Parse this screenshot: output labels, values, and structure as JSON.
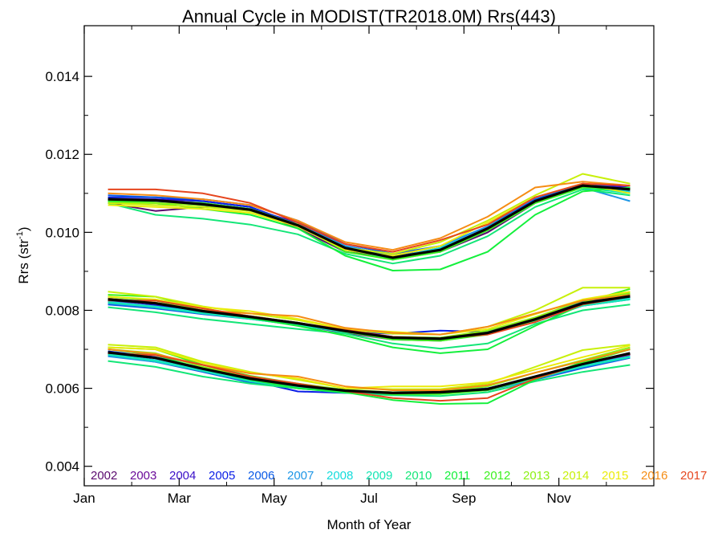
{
  "chart_data": {
    "type": "line",
    "title": "Annual Cycle in MODIST(TR2018.0M) Rrs(443)",
    "xlabel": "Month of Year",
    "ylabel_main": "Rrs (str",
    "ylabel_exp": "-1",
    "ylabel_close": ")",
    "xlim": [
      1,
      13
    ],
    "ylim": [
      0.0035,
      0.0153
    ],
    "x_ticks": [
      {
        "value": 1,
        "label": "Jan"
      },
      {
        "value": 3,
        "label": "Mar"
      },
      {
        "value": 5,
        "label": "May"
      },
      {
        "value": 7,
        "label": "Jul"
      },
      {
        "value": 9,
        "label": "Sep"
      },
      {
        "value": 11,
        "label": "Nov"
      }
    ],
    "y_ticks": [
      {
        "value": 0.004,
        "label": "0.004"
      },
      {
        "value": 0.006,
        "label": "0.006"
      },
      {
        "value": 0.008,
        "label": "0.008"
      },
      {
        "value": 0.01,
        "label": "0.010"
      },
      {
        "value": 0.012,
        "label": "0.012"
      },
      {
        "value": 0.014,
        "label": "0.014"
      }
    ],
    "x": [
      1.5,
      2.5,
      3.5,
      4.5,
      5.5,
      6.5,
      7.5,
      8.5,
      9.5,
      10.5,
      11.5,
      12.5
    ],
    "grid": false,
    "legend_placement": "bottom",
    "groups": [
      "upper",
      "middle",
      "lower"
    ],
    "series": [
      {
        "name": "2002",
        "color": "#5a0a6e",
        "values": {
          "upper": [
            0.01075,
            0.01055,
            0.01065,
            0.0106,
            0.0101,
            0.0095,
            0.00935,
            0.0095,
            0.01,
            0.01075,
            0.0112,
            0.01105
          ],
          "middle": [
            0.0082,
            0.00812,
            0.00795,
            0.00782,
            0.00765,
            0.00745,
            0.00728,
            0.00725,
            0.0074,
            0.00775,
            0.00818,
            0.00835
          ],
          "lower": [
            0.0069,
            0.00672,
            0.00645,
            0.00618,
            0.00604,
            0.00592,
            0.00588,
            0.0059,
            0.00595,
            0.00625,
            0.00655,
            0.0068
          ]
        }
      },
      {
        "name": "2003",
        "color": "#6a0a9a",
        "values": {
          "upper": [
            0.0108,
            0.01075,
            0.0107,
            0.0106,
            0.01025,
            0.00965,
            0.0094,
            0.00955,
            0.0101,
            0.0108,
            0.0112,
            0.0111
          ],
          "middle": [
            0.00825,
            0.0081,
            0.00792,
            0.0078,
            0.00762,
            0.00742,
            0.00725,
            0.00722,
            0.0074,
            0.00775,
            0.0082,
            0.00838
          ],
          "lower": [
            0.00688,
            0.0067,
            0.00645,
            0.0062,
            0.00603,
            0.0059,
            0.00588,
            0.00588,
            0.00598,
            0.00628,
            0.0066,
            0.00685
          ]
        }
      },
      {
        "name": "2004",
        "color": "#3a10c8",
        "values": {
          "upper": [
            0.01085,
            0.01085,
            0.0108,
            0.01065,
            0.0102,
            0.0096,
            0.00935,
            0.0096,
            0.0101,
            0.0108,
            0.01125,
            0.01115
          ],
          "middle": [
            0.0083,
            0.00818,
            0.008,
            0.00784,
            0.00768,
            0.00748,
            0.0073,
            0.00728,
            0.00745,
            0.0078,
            0.0082,
            0.00835
          ],
          "lower": [
            0.00692,
            0.00678,
            0.0065,
            0.00625,
            0.00607,
            0.00594,
            0.0059,
            0.00592,
            0.006,
            0.0063,
            0.00662,
            0.00688
          ]
        }
      },
      {
        "name": "2005",
        "color": "#0a1ee6",
        "values": {
          "upper": [
            0.0109,
            0.0109,
            0.0108,
            0.01065,
            0.0102,
            0.0096,
            0.0093,
            0.00955,
            0.0101,
            0.01085,
            0.0112,
            0.0111
          ],
          "middle": [
            0.00828,
            0.00815,
            0.00798,
            0.00782,
            0.00765,
            0.00745,
            0.0074,
            0.00748,
            0.00745,
            0.00778,
            0.00822,
            0.00838
          ],
          "lower": [
            0.00695,
            0.0068,
            0.00652,
            0.0062,
            0.00592,
            0.00588,
            0.0059,
            0.0059,
            0.00598,
            0.00628,
            0.0066,
            0.00688
          ]
        }
      },
      {
        "name": "2006",
        "color": "#0a5ae6",
        "values": {
          "upper": [
            0.01095,
            0.0109,
            0.01085,
            0.0107,
            0.0103,
            0.0097,
            0.00945,
            0.00965,
            0.01015,
            0.01085,
            0.01125,
            0.0111
          ],
          "middle": [
            0.00815,
            0.00805,
            0.0079,
            0.00778,
            0.00762,
            0.00745,
            0.0073,
            0.00728,
            0.00742,
            0.0077,
            0.00812,
            0.00828
          ],
          "lower": [
            0.00685,
            0.00668,
            0.00642,
            0.00615,
            0.006,
            0.0059,
            0.00585,
            0.00588,
            0.00595,
            0.00622,
            0.00652,
            0.00678
          ]
        }
      },
      {
        "name": "2007",
        "color": "#1e96e6",
        "values": {
          "upper": [
            0.0108,
            0.0108,
            0.01075,
            0.0106,
            0.0102,
            0.00965,
            0.0094,
            0.00965,
            0.01015,
            0.0108,
            0.01115,
            0.0108
          ],
          "middle": [
            0.00818,
            0.00808,
            0.00792,
            0.0078,
            0.00765,
            0.00746,
            0.00732,
            0.0073,
            0.00745,
            0.00772,
            0.00815,
            0.0083
          ],
          "lower": [
            0.00682,
            0.00668,
            0.00645,
            0.00618,
            0.00602,
            0.00592,
            0.0059,
            0.00592,
            0.006,
            0.00628,
            0.00655,
            0.0068
          ]
        }
      },
      {
        "name": "2008",
        "color": "#14dcdc",
        "values": {
          "upper": [
            0.01085,
            0.0108,
            0.01075,
            0.0106,
            0.0102,
            0.00962,
            0.00935,
            0.0096,
            0.0101,
            0.0108,
            0.01118,
            0.01105
          ],
          "middle": [
            0.00822,
            0.0081,
            0.00795,
            0.0078,
            0.00764,
            0.00746,
            0.00732,
            0.0073,
            0.00744,
            0.00775,
            0.00815,
            0.00832
          ],
          "lower": [
            0.00688,
            0.00672,
            0.00646,
            0.0062,
            0.00603,
            0.00592,
            0.00588,
            0.0059,
            0.00598,
            0.00626,
            0.00658,
            0.00682
          ]
        }
      },
      {
        "name": "2009",
        "color": "#14e6b4",
        "values": {
          "upper": [
            0.01078,
            0.01075,
            0.0107,
            0.01055,
            0.01018,
            0.0096,
            0.0093,
            0.0095,
            0.01005,
            0.01075,
            0.01115,
            0.011
          ],
          "middle": [
            0.0082,
            0.00808,
            0.00792,
            0.00778,
            0.00762,
            0.00744,
            0.0073,
            0.00726,
            0.00742,
            0.00772,
            0.00812,
            0.00828
          ],
          "lower": [
            0.00686,
            0.0067,
            0.00644,
            0.00618,
            0.00602,
            0.0059,
            0.00588,
            0.0059,
            0.00596,
            0.00624,
            0.00656,
            0.0068
          ]
        }
      },
      {
        "name": "2010",
        "color": "#14e678",
        "values": {
          "upper": [
            0.01075,
            0.01045,
            0.01035,
            0.0102,
            0.00995,
            0.00945,
            0.0092,
            0.0094,
            0.0099,
            0.01065,
            0.0111,
            0.01095
          ],
          "middle": [
            0.00808,
            0.00795,
            0.00778,
            0.00765,
            0.00752,
            0.0074,
            0.00715,
            0.00702,
            0.00715,
            0.00765,
            0.008,
            0.00815
          ],
          "lower": [
            0.0067,
            0.00655,
            0.0063,
            0.00612,
            0.006,
            0.00588,
            0.00582,
            0.0058,
            0.0059,
            0.00618,
            0.00642,
            0.0066
          ]
        }
      },
      {
        "name": "2011",
        "color": "#14f03c",
        "values": {
          "upper": [
            0.0108,
            0.01075,
            0.0106,
            0.01045,
            0.0101,
            0.0094,
            0.00902,
            0.00905,
            0.0095,
            0.01045,
            0.01105,
            0.01115
          ],
          "middle": [
            0.00835,
            0.00825,
            0.008,
            0.0078,
            0.0076,
            0.00735,
            0.00705,
            0.0069,
            0.007,
            0.0076,
            0.00815,
            0.00842
          ],
          "lower": [
            0.007,
            0.00685,
            0.0065,
            0.00622,
            0.006,
            0.0059,
            0.0057,
            0.0056,
            0.00562,
            0.00622,
            0.00668,
            0.007
          ]
        }
      },
      {
        "name": "2012",
        "color": "#3cf01e",
        "values": {
          "upper": [
            0.0108,
            0.0108,
            0.01075,
            0.0106,
            0.0102,
            0.0095,
            0.0093,
            0.0095,
            0.01005,
            0.01075,
            0.01115,
            0.0111
          ],
          "middle": [
            0.0084,
            0.00835,
            0.00805,
            0.00785,
            0.00768,
            0.00745,
            0.00725,
            0.00722,
            0.00738,
            0.00775,
            0.0082,
            0.00855
          ],
          "lower": [
            0.00705,
            0.007,
            0.0066,
            0.00632,
            0.00612,
            0.00596,
            0.00585,
            0.00585,
            0.00595,
            0.00628,
            0.00665,
            0.007
          ]
        }
      },
      {
        "name": "2013",
        "color": "#8cf014",
        "values": {
          "upper": [
            0.01075,
            0.01075,
            0.0107,
            0.01055,
            0.01018,
            0.00955,
            0.00935,
            0.00955,
            0.0101,
            0.0108,
            0.0112,
            0.0111
          ],
          "middle": [
            0.0083,
            0.0082,
            0.008,
            0.00785,
            0.00768,
            0.00748,
            0.00732,
            0.0073,
            0.00748,
            0.00782,
            0.00825,
            0.00845
          ],
          "lower": [
            0.007,
            0.0069,
            0.00655,
            0.0063,
            0.0061,
            0.00596,
            0.0059,
            0.00592,
            0.00605,
            0.0064,
            0.00672,
            0.00705
          ]
        }
      },
      {
        "name": "2014",
        "color": "#c8f00a",
        "values": {
          "upper": [
            0.01075,
            0.0107,
            0.01065,
            0.01055,
            0.0102,
            0.0096,
            0.00945,
            0.00975,
            0.0103,
            0.01095,
            0.0115,
            0.01125
          ],
          "middle": [
            0.00848,
            0.00835,
            0.0081,
            0.00792,
            0.00775,
            0.00752,
            0.0074,
            0.00738,
            0.00758,
            0.008,
            0.00858,
            0.00858
          ],
          "lower": [
            0.00712,
            0.00705,
            0.00668,
            0.00642,
            0.00622,
            0.006,
            0.00598,
            0.00598,
            0.00612,
            0.00655,
            0.00698,
            0.00712
          ]
        }
      },
      {
        "name": "2015",
        "color": "#ebeb0a",
        "values": {
          "upper": [
            0.0107,
            0.01065,
            0.0106,
            0.0105,
            0.01015,
            0.00955,
            0.0094,
            0.00965,
            0.01025,
            0.0109,
            0.01125,
            0.011
          ],
          "middle": [
            0.00835,
            0.00828,
            0.00808,
            0.00798,
            0.00778,
            0.00752,
            0.00745,
            0.00738,
            0.00752,
            0.0079,
            0.00828,
            0.00848
          ],
          "lower": [
            0.00705,
            0.007,
            0.00665,
            0.0064,
            0.00625,
            0.006,
            0.00605,
            0.00605,
            0.00615,
            0.00648,
            0.0068,
            0.0071
          ]
        }
      },
      {
        "name": "2016",
        "color": "#f58c14",
        "values": {
          "upper": [
            0.011,
            0.01095,
            0.01085,
            0.0107,
            0.0103,
            0.00975,
            0.00955,
            0.00985,
            0.0104,
            0.01115,
            0.0113,
            0.0112
          ],
          "middle": [
            0.0083,
            0.0082,
            0.008,
            0.00792,
            0.00785,
            0.00755,
            0.00742,
            0.00738,
            0.00758,
            0.00792,
            0.00825,
            0.0084
          ],
          "lower": [
            0.007,
            0.00688,
            0.0066,
            0.00638,
            0.0063,
            0.00605,
            0.00595,
            0.00595,
            0.00608,
            0.0064,
            0.0067,
            0.007
          ]
        }
      },
      {
        "name": "2017",
        "color": "#e6461e",
        "values": {
          "upper": [
            0.0111,
            0.0111,
            0.011,
            0.01075,
            0.01025,
            0.0097,
            0.0095,
            0.0098,
            0.0102,
            0.0109,
            0.01125,
            0.0112
          ],
          "middle": [
            0.00825,
            0.00825,
            0.00805,
            0.00785,
            0.00768,
            0.0075,
            0.00732,
            0.00728,
            0.00738,
            0.0077,
            0.00815,
            0.00835
          ],
          "lower": [
            0.0069,
            0.00685,
            0.0066,
            0.0063,
            0.00612,
            0.00593,
            0.00575,
            0.00568,
            0.00575,
            0.00625,
            0.00662,
            0.00688
          ]
        }
      }
    ],
    "mean_series": {
      "color": "#000000",
      "values": {
        "upper": [
          0.01085,
          0.01082,
          0.01072,
          0.01058,
          0.01018,
          0.0096,
          0.00935,
          0.00955,
          0.0101,
          0.0108,
          0.0112,
          0.0111
        ],
        "middle": [
          0.00828,
          0.00818,
          0.00798,
          0.00783,
          0.00767,
          0.00747,
          0.0073,
          0.00727,
          0.00742,
          0.00777,
          0.00818,
          0.00836
        ],
        "lower": [
          0.00692,
          0.00678,
          0.0065,
          0.00625,
          0.00607,
          0.00594,
          0.00588,
          0.0059,
          0.00598,
          0.0063,
          0.00662,
          0.0069
        ]
      }
    }
  }
}
